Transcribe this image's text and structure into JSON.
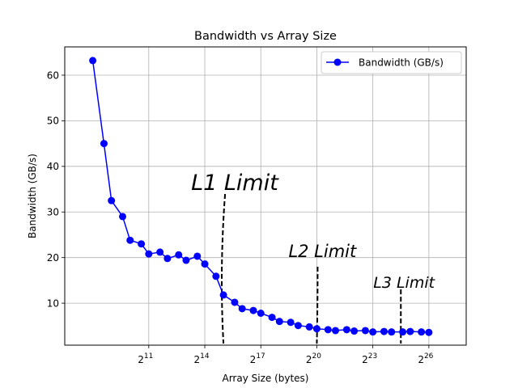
{
  "chart_data": {
    "type": "line",
    "title": "Bandwidth vs Array Size",
    "xlabel": "Array Size (bytes)",
    "ylabel": "Bandwidth (GB/s)",
    "x_scale": "log2",
    "xlim_exponent": [
      6.5,
      28
    ],
    "ylim": [
      0.8,
      66.2
    ],
    "x_ticks": [
      {
        "exp": 11,
        "label": "11"
      },
      {
        "exp": 14,
        "label": "14"
      },
      {
        "exp": 17,
        "label": "17"
      },
      {
        "exp": 20,
        "label": "20"
      },
      {
        "exp": 23,
        "label": "23"
      },
      {
        "exp": 26,
        "label": "26"
      }
    ],
    "x_tick_base": "2",
    "y_ticks": [
      10,
      20,
      30,
      40,
      50,
      60
    ],
    "grid": true,
    "legend": {
      "position": "top-right",
      "label": "Bandwidth (GB/s)"
    },
    "series": [
      {
        "name": "Bandwidth (GB/s)",
        "color": "#0000ff",
        "marker": "circle",
        "points": [
          {
            "x_exp": 8.0,
            "y": 63.2
          },
          {
            "x_exp": 8.6,
            "y": 45.0
          },
          {
            "x_exp": 9.0,
            "y": 32.5
          },
          {
            "x_exp": 9.6,
            "y": 29.0
          },
          {
            "x_exp": 10.0,
            "y": 23.8
          },
          {
            "x_exp": 10.6,
            "y": 23.0
          },
          {
            "x_exp": 11.0,
            "y": 20.8
          },
          {
            "x_exp": 11.6,
            "y": 21.2
          },
          {
            "x_exp": 12.0,
            "y": 19.8
          },
          {
            "x_exp": 12.6,
            "y": 20.6
          },
          {
            "x_exp": 13.0,
            "y": 19.4
          },
          {
            "x_exp": 13.6,
            "y": 20.3
          },
          {
            "x_exp": 14.0,
            "y": 18.6
          },
          {
            "x_exp": 14.6,
            "y": 15.9
          },
          {
            "x_exp": 15.0,
            "y": 11.8
          },
          {
            "x_exp": 15.6,
            "y": 10.2
          },
          {
            "x_exp": 16.0,
            "y": 8.8
          },
          {
            "x_exp": 16.6,
            "y": 8.4
          },
          {
            "x_exp": 17.0,
            "y": 7.8
          },
          {
            "x_exp": 17.6,
            "y": 6.9
          },
          {
            "x_exp": 18.0,
            "y": 6.0
          },
          {
            "x_exp": 18.6,
            "y": 5.8
          },
          {
            "x_exp": 19.0,
            "y": 5.1
          },
          {
            "x_exp": 19.6,
            "y": 4.8
          },
          {
            "x_exp": 20.0,
            "y": 4.4
          },
          {
            "x_exp": 20.6,
            "y": 4.2
          },
          {
            "x_exp": 21.0,
            "y": 4.0
          },
          {
            "x_exp": 21.6,
            "y": 4.2
          },
          {
            "x_exp": 22.0,
            "y": 3.9
          },
          {
            "x_exp": 22.6,
            "y": 4.0
          },
          {
            "x_exp": 23.0,
            "y": 3.7
          },
          {
            "x_exp": 23.6,
            "y": 3.8
          },
          {
            "x_exp": 24.0,
            "y": 3.7
          },
          {
            "x_exp": 24.6,
            "y": 3.7
          },
          {
            "x_exp": 25.0,
            "y": 3.8
          },
          {
            "x_exp": 25.6,
            "y": 3.7
          },
          {
            "x_exp": 26.0,
            "y": 3.6
          }
        ]
      }
    ],
    "annotations": [
      {
        "text": "L1 Limit",
        "line_x_exp": 15.0
      },
      {
        "text": "L2 Limit",
        "line_x_exp": 20.0
      },
      {
        "text": "L3 Limit",
        "line_x_exp": 24.5
      }
    ]
  }
}
